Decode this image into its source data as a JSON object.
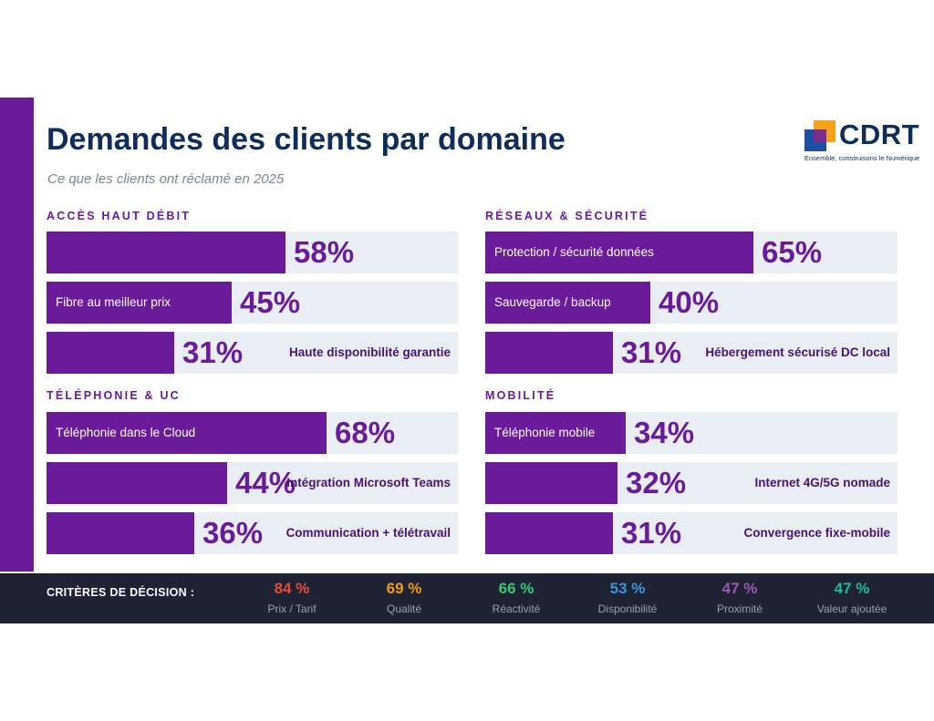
{
  "header": {
    "title": "Demandes des clients par domaine",
    "subtitle": "Ce que les clients ont réclamé en 2025"
  },
  "logo": {
    "name": "CDRT",
    "tagline": "Ensemble, construisons le Numérique",
    "colors": [
      "#f7a21b",
      "#1e4fa0",
      "#7b2b8c",
      "#0f2d5c"
    ]
  },
  "colors": {
    "accent": "#6a1b9a",
    "track": "#e9eef5",
    "title": "#0f2d5c",
    "footer_bg": "#1e2233"
  },
  "chart_data": [
    {
      "type": "bar",
      "title": "ACCÈS HAUT DÉBIT",
      "categories": [
        "",
        "Fibre au meilleur prix",
        "Haute disponibilité garantie"
      ],
      "values": [
        58,
        45,
        31
      ],
      "value_labels": [
        "58%",
        "45%",
        "31%"
      ],
      "xlim": [
        0,
        100
      ]
    },
    {
      "type": "bar",
      "title": "RÉSEAUX & SÉCURITÉ",
      "categories": [
        "Protection / sécurité données",
        "Sauvegarde / backup",
        "Hébergement sécurisé DC local"
      ],
      "values": [
        65,
        40,
        31
      ],
      "value_labels": [
        "65%",
        "40%",
        "31%"
      ],
      "xlim": [
        0,
        100
      ]
    },
    {
      "type": "bar",
      "title": "TÉLÉPHONIE & UC",
      "categories": [
        "Téléphonie dans le Cloud",
        "Intégration Microsoft Teams",
        "Communication + télétravail"
      ],
      "values": [
        68,
        44,
        36
      ],
      "value_labels": [
        "68%",
        "44%",
        "36%"
      ],
      "xlim": [
        0,
        100
      ]
    },
    {
      "type": "bar",
      "title": "MOBILITÉ",
      "categories": [
        "Téléphonie mobile",
        "Internet 4G/5G nomade",
        "Convergence fixe-mobile"
      ],
      "values": [
        34,
        32,
        31
      ],
      "value_labels": [
        "34%",
        "32%",
        "31%"
      ],
      "xlim": [
        0,
        100
      ]
    }
  ],
  "footer": {
    "label": "CRITÈRES DE DÉCISION :",
    "criteria": [
      {
        "value": 84,
        "value_label": "84 %",
        "name": "Prix / Tarif",
        "color": "#e74c3c"
      },
      {
        "value": 69,
        "value_label": "69 %",
        "name": "Qualité",
        "color": "#f39c12"
      },
      {
        "value": 66,
        "value_label": "66 %",
        "name": "Réactivité",
        "color": "#2ecc71"
      },
      {
        "value": 53,
        "value_label": "53 %",
        "name": "Disponibilité",
        "color": "#3498db"
      },
      {
        "value": 47,
        "value_label": "47 %",
        "name": "Proximité",
        "color": "#9b59b6"
      },
      {
        "value": 47,
        "value_label": "47 %",
        "name": "Valeur ajoutée",
        "color": "#1abc9c"
      }
    ]
  }
}
